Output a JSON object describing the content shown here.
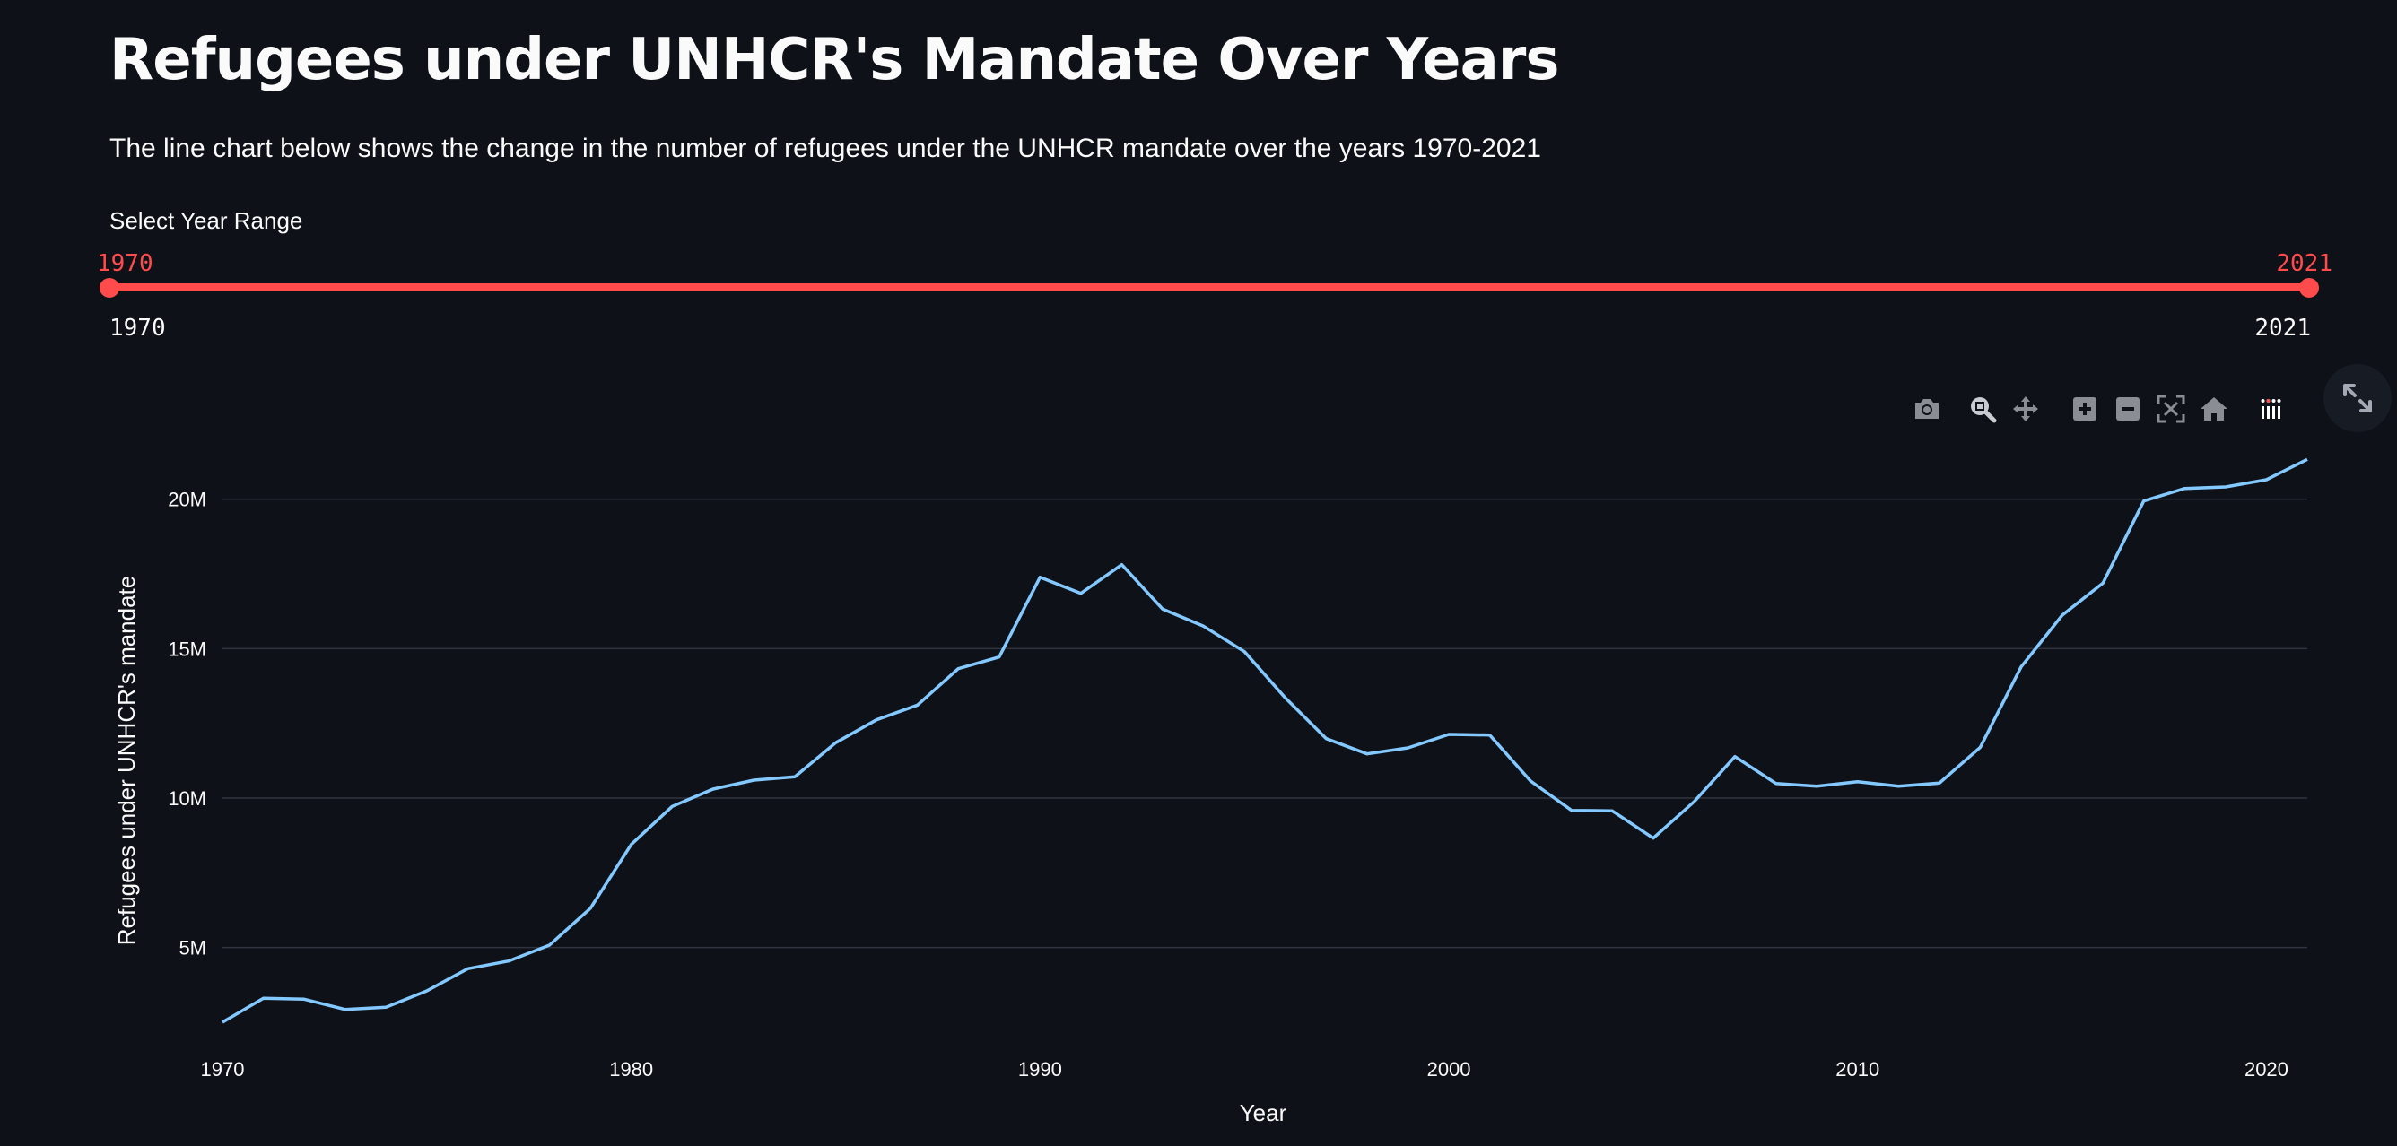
{
  "header": {
    "title": "Refugees under UNHCR's Mandate Over Years",
    "subtitle": "The line chart below shows the change in the number of refugees under the UNHCR mandate over the years 1970-2021"
  },
  "slider": {
    "label": "Select Year Range",
    "min": 1970,
    "max": 2021,
    "value_min": "1970",
    "value_max": "2021",
    "tick_min": "1970",
    "tick_max": "2021",
    "accent_color": "#ff4b4b"
  },
  "modebar": {
    "icons": [
      "camera-icon",
      "zoom-icon",
      "pan-icon",
      "zoom-in-icon",
      "zoom-out-icon",
      "autoscale-icon",
      "home-icon",
      "plotly-logo-icon"
    ]
  },
  "chart_data": {
    "type": "line",
    "xlabel": "Year",
    "ylabel": "Refugees under UNHCR's mandate",
    "xlim": [
      1970,
      2021
    ],
    "ylim": [
      1900000,
      21700000
    ],
    "xticks": [
      1970,
      1980,
      1990,
      2000,
      2010,
      2020
    ],
    "yticks": [
      5000000,
      10000000,
      15000000,
      20000000
    ],
    "ytick_labels": [
      "5M",
      "10M",
      "15M",
      "20M"
    ],
    "grid": true,
    "line_color": "#83c9ff",
    "series": [
      {
        "x": [
          1970,
          1971,
          1972,
          1973,
          1974,
          1975,
          1976,
          1977,
          1978,
          1979,
          1980,
          1981,
          1982,
          1983,
          1984,
          1985,
          1986,
          1987,
          1988,
          1989,
          1990,
          1991,
          1992,
          1993,
          1994,
          1995,
          1996,
          1997,
          1998,
          1999,
          2000,
          2001,
          2002,
          2003,
          2004,
          2005,
          2006,
          2007,
          2008,
          2009,
          2010,
          2011,
          2012,
          2013,
          2014,
          2015,
          2016,
          2017,
          2018,
          2019,
          2020,
          2021
        ],
        "y": [
          2500000,
          3300000,
          3270000,
          2930000,
          3000000,
          3550000,
          4290000,
          4550000,
          5080000,
          6310000,
          8450000,
          9720000,
          10300000,
          10600000,
          10710000,
          11850000,
          12620000,
          13110000,
          14330000,
          14720000,
          17390000,
          16850000,
          17810000,
          16320000,
          15750000,
          14900000,
          13350000,
          11990000,
          11480000,
          11680000,
          12130000,
          12110000,
          10570000,
          9590000,
          9570000,
          8660000,
          9880000,
          11390000,
          10490000,
          10400000,
          10550000,
          10400000,
          10500000,
          11700000,
          14390000,
          16110000,
          17190000,
          19940000,
          20360000,
          20410000,
          20650000,
          21330000
        ]
      }
    ]
  }
}
